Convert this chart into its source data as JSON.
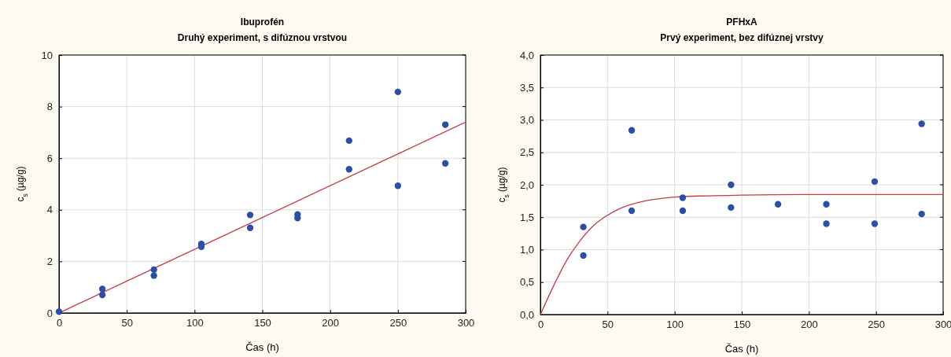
{
  "chart_data": [
    {
      "type": "scatter",
      "title": "Ibuprofén",
      "subtitle": "Druhý experiment, s difúznou vrstvou",
      "xlabel": "Čas (h)",
      "ylabel": "c$_{s}$ (µg/g)",
      "xlim": [
        0,
        300
      ],
      "ylim": [
        0,
        10
      ],
      "xticks": [
        0,
        50,
        100,
        150,
        200,
        250,
        300
      ],
      "yticks": [
        0,
        2,
        4,
        6,
        8,
        10
      ],
      "grid": true,
      "series": [
        {
          "marker": "circle",
          "color": "#2b4ea6",
          "x": [
            0,
            32,
            32,
            70,
            70,
            105,
            105,
            141,
            141,
            176,
            176,
            214,
            214,
            250,
            250,
            285,
            285
          ],
          "values": [
            0.05,
            0.93,
            0.7,
            1.68,
            1.45,
            2.68,
            2.57,
            3.8,
            3.3,
            3.82,
            3.68,
            6.68,
            5.57,
            8.57,
            4.93,
            7.3,
            5.8
          ]
        },
        {
          "type": "line",
          "color": "#c83a46",
          "x": [
            0,
            300
          ],
          "values": [
            0,
            7.4
          ]
        }
      ]
    },
    {
      "type": "scatter",
      "title": "PFHxA",
      "subtitle": "Prvý experiment, bez difúznej vrstvy",
      "xlabel": "Čas (h)",
      "ylabel": "c$_{s}$ (µg/g)",
      "xlim": [
        0,
        300
      ],
      "ylim": [
        0,
        4
      ],
      "xticks": [
        0,
        50,
        100,
        150,
        200,
        250,
        300
      ],
      "yticks": [
        {
          "value": 0,
          "label": "0,0"
        },
        {
          "value": 0.5,
          "label": "0,5"
        },
        {
          "value": 1,
          "label": "1,0"
        },
        {
          "value": 1.5,
          "label": "1,5"
        },
        {
          "value": 2,
          "label": "2,0"
        },
        {
          "value": 2.5,
          "label": "2,5"
        },
        {
          "value": 3,
          "label": "3,0"
        },
        {
          "value": 3.5,
          "label": "3,5"
        },
        {
          "value": 4,
          "label": "4,0"
        }
      ],
      "grid": true,
      "series": [
        {
          "marker": "circle",
          "color": "#2b4ea6",
          "x": [
            32,
            32,
            68,
            68,
            106,
            106,
            142,
            142,
            177,
            213,
            213,
            249,
            249,
            284,
            284
          ],
          "values": [
            1.35,
            0.91,
            2.84,
            1.6,
            1.8,
            1.6,
            2.0,
            1.65,
            1.7,
            1.7,
            1.4,
            2.05,
            1.4,
            2.94,
            1.55
          ]
        },
        {
          "type": "line",
          "color": "#c83a46",
          "x": [
            0,
            10,
            20,
            30,
            40,
            50,
            60,
            70,
            80,
            90,
            100,
            125,
            150,
            200,
            300
          ],
          "values": [
            0,
            0.45,
            0.85,
            1.15,
            1.38,
            1.53,
            1.64,
            1.71,
            1.76,
            1.79,
            1.81,
            1.83,
            1.84,
            1.85,
            1.85
          ]
        }
      ]
    }
  ]
}
